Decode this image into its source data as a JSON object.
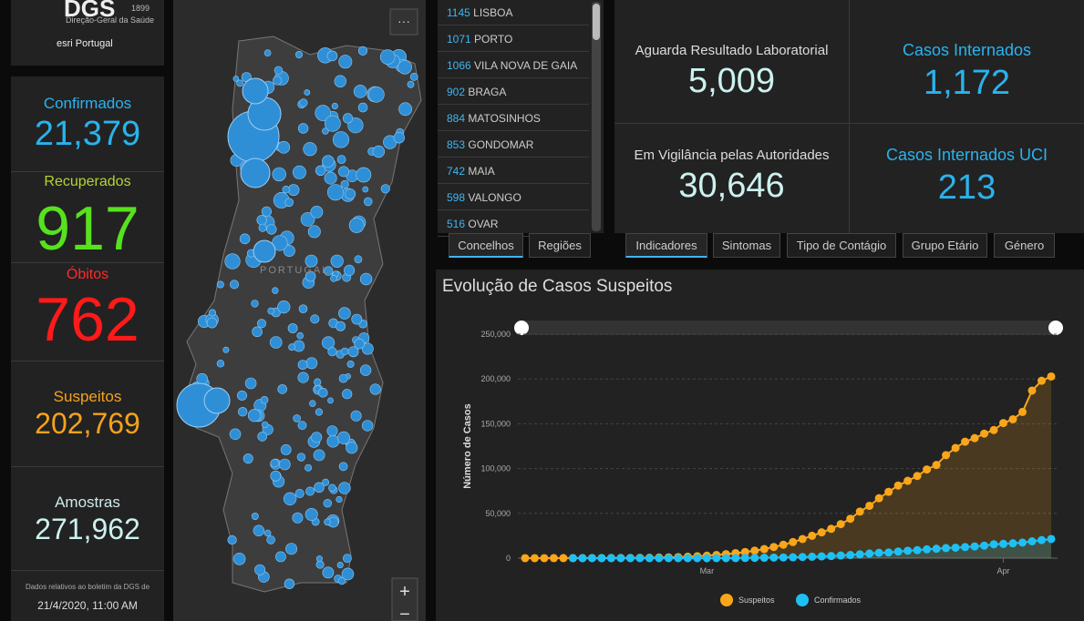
{
  "header": {
    "logo": "DGS",
    "year": "1899",
    "org": "Direção-Geral da Saúde",
    "partner": "esri Portugal"
  },
  "stats": [
    {
      "label": "Confirmados",
      "value": "21,379"
    },
    {
      "label": "Recuperados",
      "value": "917"
    },
    {
      "label": "Óbitos",
      "value": "762"
    },
    {
      "label": "Suspeitos",
      "value": "202,769"
    },
    {
      "label": "Amostras",
      "value": "271,962"
    }
  ],
  "footer": {
    "note": "Dados relativos ao boletim da DGS de",
    "date": "21/4/2020, 11:00 AM"
  },
  "map": {
    "label": "PORTUGAL",
    "menu": "···",
    "zoom_in": "+",
    "zoom_out": "−"
  },
  "municipalities": [
    {
      "count": 1145,
      "name": "LISBOA"
    },
    {
      "count": 1071,
      "name": "PORTO"
    },
    {
      "count": 1066,
      "name": "VILA NOVA DE GAIA"
    },
    {
      "count": 902,
      "name": "BRAGA"
    },
    {
      "count": 884,
      "name": "MATOSINHOS"
    },
    {
      "count": 853,
      "name": "GONDOMAR"
    },
    {
      "count": 742,
      "name": "MAIA"
    },
    {
      "count": 598,
      "name": "VALONGO"
    },
    {
      "count": 516,
      "name": "OVAR"
    }
  ],
  "list_tabs": [
    "Concelhos",
    "Regiões"
  ],
  "indicators": [
    {
      "label": "Aguarda Resultado Laboratorial",
      "value": "5,009"
    },
    {
      "label": "Casos Internados",
      "value": "1,172"
    },
    {
      "label": "Em Vigilância pelas Autoridades",
      "value": "30,646"
    },
    {
      "label": "Casos Internados UCI",
      "value": "213"
    }
  ],
  "indicator_tabs": [
    "Indicadores",
    "Sintomas",
    "Tipo de Contágio",
    "Grupo Etário",
    "Género"
  ],
  "chart_data": {
    "type": "line",
    "title": "Evolução de Casos Suspeitos",
    "y_label": "Número de Casos",
    "categories": [
      null,
      null,
      null,
      null,
      null,
      null,
      null,
      null,
      null,
      null,
      null,
      null,
      null,
      null,
      null,
      null,
      null,
      null,
      null,
      "Mar",
      null,
      null,
      null,
      null,
      null,
      null,
      null,
      null,
      null,
      null,
      null,
      null,
      null,
      null,
      null,
      null,
      null,
      null,
      null,
      null,
      null,
      null,
      null,
      null,
      null,
      null,
      null,
      null,
      null,
      null,
      "Apr",
      null,
      null,
      null,
      null,
      null
    ],
    "series": [
      {
        "name": "Suspeitos",
        "color": "#f9a61b",
        "area": true,
        "values": [
          25,
          51,
          59,
          70,
          85,
          101,
          116,
          140,
          170,
          200,
          250,
          300,
          400,
          500,
          700,
          900,
          1200,
          1600,
          2100,
          2800,
          3500,
          4500,
          5600,
          6900,
          8400,
          10200,
          12500,
          15000,
          18000,
          21355,
          25000,
          28800,
          32753,
          38042,
          44000,
          52000,
          58452,
          66895,
          74000,
          81087,
          86370,
          91756,
          99000,
          104000,
          115000,
          123000,
          130000,
          134000,
          139000,
          143000,
          150842,
          155000,
          163211,
          187000,
          198000,
          202769
        ]
      },
      {
        "name": "Confirmados",
        "color": "#1ec0f4",
        "area": true,
        "values": [
          null,
          null,
          null,
          null,
          null,
          0,
          0,
          0,
          0,
          0,
          0,
          0,
          0,
          0,
          0,
          0,
          0,
          0,
          0,
          0,
          0,
          50,
          100,
          200,
          300,
          450,
          650,
          800,
          1000,
          1300,
          1600,
          2000,
          2400,
          3000,
          3500,
          4300,
          5200,
          6000,
          6400,
          7400,
          8300,
          9000,
          9900,
          10500,
          11300,
          11700,
          12400,
          13100,
          14000,
          15500,
          16000,
          16600,
          17400,
          18800,
          20200,
          21379
        ]
      }
    ],
    "ylim": [
      0,
      250000
    ],
    "yticks": [
      0,
      {
        "value": 50000,
        "label": "50,000"
      },
      {
        "value": 100000,
        "label": "100,000"
      },
      {
        "value": 150000,
        "label": "150,000"
      },
      {
        "value": 200000,
        "label": "200,000"
      },
      {
        "value": 250000,
        "label": "250,000"
      }
    ],
    "grid": true,
    "legend": "bottom"
  }
}
